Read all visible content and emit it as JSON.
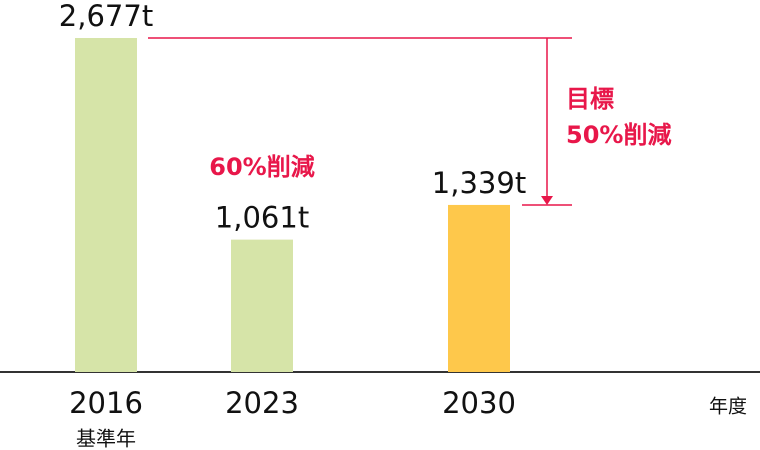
{
  "chart_data": {
    "type": "bar",
    "categories": [
      "2016",
      "2023",
      "2030"
    ],
    "base_year_label": "基準年",
    "values": [
      2677,
      1061,
      1339
    ],
    "value_labels": [
      "2,677t",
      "1,061t",
      "1,339t"
    ],
    "colors": [
      "#d6e4a8",
      "#d6e4a8",
      "#fec84b"
    ],
    "reduction_label": "60%削減",
    "target_label": [
      "目標",
      "50%削減"
    ],
    "annotation_color": "#e8174a",
    "x_label": "年度"
  }
}
